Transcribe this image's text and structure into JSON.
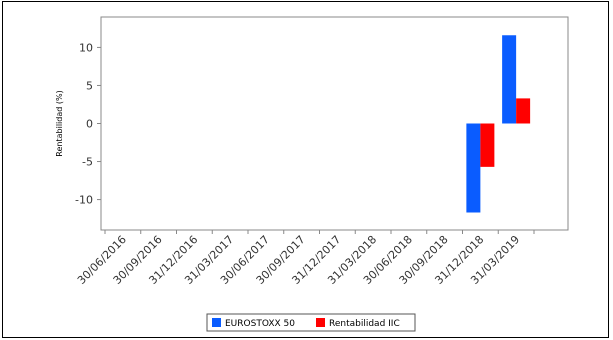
{
  "chart_data": {
    "type": "bar",
    "ylabel": "Rentabilidad (%)",
    "xlabel": "",
    "title": "",
    "categories": [
      "30/06/2016",
      "30/09/2016",
      "31/12/2016",
      "31/03/2017",
      "30/06/2017",
      "30/09/2017",
      "31/12/2017",
      "31/03/2018",
      "30/06/2018",
      "30/09/2018",
      "31/12/2018",
      "31/03/2019"
    ],
    "series": [
      {
        "name": "EUROSTOXX 50",
        "color": "#0a5cff",
        "values": [
          null,
          null,
          null,
          null,
          null,
          null,
          null,
          null,
          null,
          null,
          -11.7,
          11.6
        ]
      },
      {
        "name": "Rentabilidad IIC",
        "color": "#ff0000",
        "values": [
          null,
          null,
          null,
          null,
          null,
          null,
          null,
          null,
          null,
          null,
          -5.7,
          3.3
        ]
      }
    ],
    "ylim": [
      -14,
      14
    ],
    "yticks": [
      10,
      5,
      0,
      -5,
      -10
    ],
    "grid": false,
    "legend_position": "bottom"
  }
}
